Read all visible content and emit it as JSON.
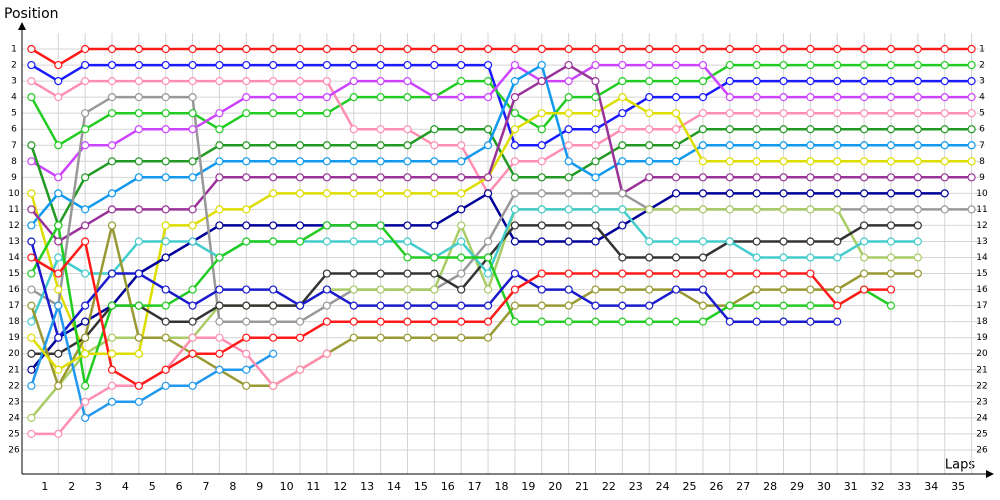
{
  "chart_data": {
    "type": "line",
    "y_label": "Position",
    "x_label": "Laps",
    "x": [
      0,
      1,
      2,
      3,
      4,
      5,
      6,
      7,
      8,
      9,
      10,
      11,
      12,
      13,
      14,
      15,
      16,
      17,
      18,
      19,
      20,
      21,
      22,
      23,
      24,
      25,
      26,
      27,
      28,
      29,
      30,
      31,
      32,
      33,
      34,
      35
    ],
    "xlim": [
      -0.35,
      35.5
    ],
    "xticks": [
      1,
      2,
      3,
      4,
      5,
      6,
      7,
      8,
      9,
      10,
      11,
      12,
      13,
      14,
      15,
      16,
      17,
      18,
      19,
      20,
      21,
      22,
      23,
      24,
      25,
      26,
      27,
      28,
      29,
      30,
      31,
      32,
      33,
      34,
      35
    ],
    "ylim": [
      0,
      27.5
    ],
    "y_inverted": true,
    "yticks": [
      1,
      2,
      3,
      4,
      5,
      6,
      7,
      8,
      9,
      10,
      11,
      12,
      13,
      14,
      15,
      16,
      17,
      18,
      19,
      20,
      21,
      22,
      23,
      24,
      25,
      26
    ],
    "grid": true,
    "series": [
      {
        "color": "#ff1a1a",
        "values": [
          1,
          2,
          1,
          1,
          1,
          1,
          1,
          1,
          1,
          1,
          1,
          1,
          1,
          1,
          1,
          1,
          1,
          1,
          1,
          1,
          1,
          1,
          1,
          1,
          1,
          1,
          1,
          1,
          1,
          1,
          1,
          1,
          1,
          1,
          1,
          1
        ]
      },
      {
        "color": "#1a1aff",
        "values": [
          2,
          3,
          2,
          2,
          2,
          2,
          2,
          2,
          2,
          2,
          2,
          2,
          2,
          2,
          2,
          2,
          2,
          2,
          7,
          7,
          6,
          6,
          5,
          4,
          4,
          4,
          3,
          3,
          3,
          3,
          3,
          3,
          3,
          3,
          3,
          3
        ]
      },
      {
        "color": "#22cc22",
        "values": [
          4,
          7,
          6,
          5,
          5,
          5,
          5,
          6,
          5,
          5,
          5,
          5,
          4,
          4,
          4,
          4,
          3,
          3,
          5,
          6,
          4,
          4,
          3,
          3,
          3,
          3,
          2,
          2,
          2,
          2,
          2,
          2,
          2,
          2,
          2,
          2
        ]
      },
      {
        "color": "#ff8fb0",
        "values": [
          3,
          4,
          3,
          3,
          3,
          3,
          3,
          3,
          3,
          3,
          3,
          3,
          6,
          6,
          6,
          7,
          7,
          10,
          8,
          8,
          7,
          7,
          6,
          6,
          6,
          5,
          5,
          5,
          5,
          5,
          5,
          5,
          5,
          5,
          5,
          5
        ]
      },
      {
        "color": "#cc44ff",
        "values": [
          8,
          9,
          7,
          7,
          6,
          6,
          6,
          5,
          4,
          4,
          4,
          4,
          3,
          3,
          3,
          4,
          4,
          4,
          2,
          3,
          3,
          2,
          2,
          2,
          2,
          2,
          4,
          4,
          4,
          4,
          4,
          4,
          4,
          4,
          4,
          4
        ]
      },
      {
        "color": "#229922",
        "values": [
          7,
          12,
          9,
          8,
          8,
          8,
          8,
          7,
          7,
          7,
          7,
          7,
          7,
          7,
          7,
          6,
          6,
          6,
          9,
          9,
          9,
          8,
          7,
          7,
          7,
          6,
          6,
          6,
          6,
          6,
          6,
          6,
          6,
          6,
          6,
          6
        ]
      },
      {
        "color": "#1199ee",
        "values": [
          12,
          10,
          11,
          10,
          9,
          9,
          9,
          8,
          8,
          8,
          8,
          8,
          8,
          8,
          8,
          8,
          8,
          7,
          3,
          2,
          8,
          9,
          8,
          8,
          8,
          7,
          7,
          7,
          7,
          7,
          7,
          7,
          7,
          7,
          7,
          7
        ]
      },
      {
        "color": "#dddd00",
        "values": [
          10,
          16,
          20,
          20,
          20,
          12,
          12,
          11,
          11,
          10,
          10,
          10,
          10,
          10,
          10,
          10,
          10,
          9,
          6,
          5,
          5,
          5,
          4,
          5,
          5,
          8,
          8,
          8,
          8,
          8,
          8,
          8,
          8,
          8,
          8,
          8
        ]
      },
      {
        "color": "#993399",
        "values": [
          11,
          13,
          12,
          11,
          11,
          11,
          11,
          9,
          9,
          9,
          9,
          9,
          9,
          9,
          9,
          9,
          9,
          9,
          4,
          3,
          2,
          3,
          10,
          9,
          9,
          9,
          9,
          9,
          9,
          9,
          9,
          9,
          9,
          9,
          9,
          9
        ]
      },
      {
        "color": "#000099",
        "values": [
          21,
          19,
          18,
          17,
          15,
          14,
          13,
          12,
          12,
          12,
          12,
          12,
          12,
          12,
          12,
          12,
          11,
          10,
          13,
          13,
          13,
          13,
          12,
          11,
          10,
          10,
          10,
          10,
          10,
          10,
          10,
          10,
          10,
          10,
          10,
          null
        ]
      },
      {
        "color": "#999999",
        "values": [
          16,
          17,
          5,
          4,
          4,
          4,
          4,
          18,
          18,
          18,
          18,
          17,
          16,
          16,
          16,
          16,
          15,
          13,
          10,
          10,
          10,
          10,
          10,
          11,
          11,
          11,
          11,
          11,
          11,
          11,
          11,
          11,
          11,
          11,
          11,
          11
        ]
      },
      {
        "color": "#aacc66",
        "values": [
          24,
          22,
          20,
          19,
          19,
          19,
          19,
          17,
          17,
          17,
          17,
          16,
          16,
          16,
          16,
          16,
          12,
          16,
          11,
          11,
          11,
          11,
          11,
          11,
          11,
          11,
          11,
          11,
          11,
          11,
          11,
          14,
          14,
          14,
          null,
          null
        ]
      },
      {
        "color": "#333333",
        "values": [
          20,
          20,
          19,
          17,
          17,
          18,
          18,
          17,
          17,
          17,
          17,
          15,
          15,
          15,
          15,
          15,
          16,
          14,
          12,
          12,
          12,
          12,
          14,
          14,
          14,
          14,
          13,
          13,
          13,
          13,
          13,
          12,
          12,
          12,
          null,
          null
        ]
      },
      {
        "color": "#44cccc",
        "values": [
          18,
          14,
          15,
          15,
          13,
          13,
          13,
          14,
          13,
          13,
          13,
          13,
          13,
          13,
          13,
          14,
          13,
          15,
          11,
          11,
          11,
          11,
          11,
          13,
          13,
          13,
          13,
          14,
          14,
          14,
          14,
          13,
          13,
          13,
          null,
          null
        ]
      },
      {
        "color": "#999933",
        "values": [
          17,
          22,
          19,
          12,
          19,
          19,
          20,
          21,
          22,
          22,
          21,
          20,
          19,
          19,
          19,
          19,
          19,
          19,
          17,
          17,
          17,
          16,
          16,
          16,
          16,
          17,
          17,
          16,
          16,
          16,
          16,
          15,
          15,
          15,
          null,
          null
        ]
      },
      {
        "color": "#22cc22",
        "values": [
          15,
          12,
          22,
          17,
          17,
          17,
          16,
          14,
          13,
          13,
          13,
          12,
          12,
          12,
          14,
          14,
          14,
          14,
          18,
          18,
          18,
          18,
          18,
          18,
          18,
          18,
          17,
          17,
          17,
          17,
          17,
          16,
          17,
          null,
          null,
          null
        ]
      },
      {
        "color": "#1a1acc",
        "values": [
          13,
          19,
          17,
          15,
          15,
          16,
          17,
          16,
          16,
          16,
          17,
          16,
          17,
          17,
          17,
          17,
          17,
          17,
          15,
          16,
          16,
          17,
          17,
          17,
          16,
          16,
          18,
          18,
          18,
          18,
          18,
          null,
          null,
          null,
          null,
          null
        ]
      },
      {
        "color": "#2299ee",
        "values": [
          22,
          17,
          24,
          23,
          23,
          22,
          22,
          21,
          21,
          20,
          null,
          null,
          null,
          null,
          null,
          null,
          null,
          null,
          null,
          null,
          null,
          null,
          null,
          null,
          null,
          null,
          null,
          null,
          null,
          null,
          null,
          null,
          null,
          null,
          null,
          null
        ]
      },
      {
        "color": "#ff8fb0",
        "values": [
          25,
          25,
          23,
          22,
          22,
          21,
          19,
          19,
          20,
          22,
          21,
          20,
          null,
          null,
          null,
          null,
          null,
          null,
          null,
          null,
          null,
          null,
          null,
          null,
          null,
          null,
          null,
          null,
          null,
          null,
          null,
          null,
          null,
          null,
          null,
          null
        ]
      },
      {
        "color": "#dddd00",
        "values": [
          19,
          21,
          20,
          20,
          20,
          null,
          null,
          null,
          null,
          null,
          null,
          null,
          null,
          null,
          null,
          null,
          null,
          null,
          null,
          null,
          null,
          null,
          null,
          null,
          null,
          null,
          null,
          null,
          null,
          null,
          null,
          null,
          null,
          null,
          null,
          null
        ]
      },
      {
        "color": "#ff1a1a",
        "values": [
          14,
          15,
          13,
          21,
          22,
          21,
          20,
          20,
          19,
          19,
          19,
          18,
          18,
          18,
          18,
          18,
          18,
          18,
          16,
          15,
          15,
          15,
          15,
          15,
          15,
          15,
          15,
          15,
          15,
          15,
          17,
          16,
          16,
          null,
          null,
          null
        ]
      }
    ]
  }
}
